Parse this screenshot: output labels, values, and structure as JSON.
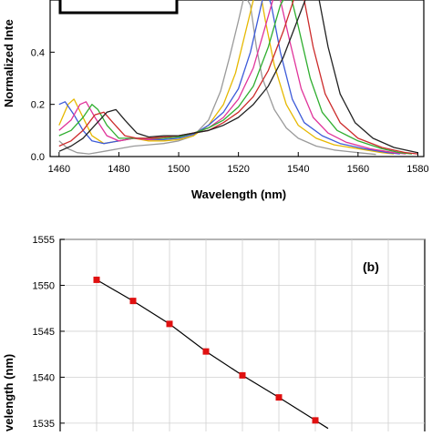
{
  "chart_data": [
    {
      "type": "line",
      "xlabel": "Wavelength (nm)",
      "ylabel": "Normalized Inte",
      "xlim": [
        1457,
        1582
      ],
      "ylim": [
        0,
        0.6
      ],
      "x_ticks": [
        "1460",
        "1480",
        "1500",
        "1520",
        "1540",
        "1560",
        "1580"
      ],
      "y_ticks": [
        "0.0",
        "0.2",
        "0.4"
      ],
      "grid": false,
      "series": [
        {
          "color": "#9a9a9a",
          "values": [
            [
              1460,
              0.06
            ],
            [
              1463,
              0.03
            ],
            [
              1466,
              0.015
            ],
            [
              1470,
              0.01
            ],
            [
              1475,
              0.02
            ],
            [
              1480,
              0.03
            ],
            [
              1485,
              0.04
            ],
            [
              1490,
              0.045
            ],
            [
              1495,
              0.05
            ],
            [
              1500,
              0.06
            ],
            [
              1505,
              0.08
            ],
            [
              1510,
              0.14
            ],
            [
              1514,
              0.25
            ],
            [
              1517,
              0.38
            ],
            [
              1520,
              0.52
            ],
            [
              1522,
              0.62
            ],
            [
              1524,
              0.58
            ],
            [
              1526,
              0.42
            ],
            [
              1528,
              0.3
            ],
            [
              1532,
              0.18
            ],
            [
              1536,
              0.11
            ],
            [
              1540,
              0.07
            ],
            [
              1546,
              0.04
            ],
            [
              1552,
              0.025
            ],
            [
              1560,
              0.015
            ],
            [
              1566,
              0.008
            ]
          ]
        },
        {
          "color": "#e6b800",
          "values": [
            [
              1460,
              0.12
            ],
            [
              1463,
              0.2
            ],
            [
              1465,
              0.22
            ],
            [
              1468,
              0.15
            ],
            [
              1471,
              0.08
            ],
            [
              1475,
              0.05
            ],
            [
              1480,
              0.06
            ],
            [
              1485,
              0.07
            ],
            [
              1490,
              0.06
            ],
            [
              1495,
              0.06
            ],
            [
              1500,
              0.065
            ],
            [
              1505,
              0.08
            ],
            [
              1510,
              0.12
            ],
            [
              1515,
              0.2
            ],
            [
              1519,
              0.32
            ],
            [
              1522,
              0.46
            ],
            [
              1525,
              0.6
            ],
            [
              1527,
              0.65
            ],
            [
              1529,
              0.52
            ],
            [
              1532,
              0.35
            ],
            [
              1536,
              0.2
            ],
            [
              1540,
              0.12
            ],
            [
              1546,
              0.07
            ],
            [
              1552,
              0.045
            ],
            [
              1560,
              0.03
            ],
            [
              1568,
              0.015
            ],
            [
              1572,
              0.01
            ]
          ]
        },
        {
          "color": "#3d5bd9",
          "values": [
            [
              1460,
              0.2
            ],
            [
              1462,
              0.21
            ],
            [
              1465,
              0.16
            ],
            [
              1468,
              0.1
            ],
            [
              1471,
              0.06
            ],
            [
              1475,
              0.05
            ],
            [
              1480,
              0.06
            ],
            [
              1485,
              0.07
            ],
            [
              1490,
              0.065
            ],
            [
              1495,
              0.065
            ],
            [
              1500,
              0.07
            ],
            [
              1505,
              0.085
            ],
            [
              1510,
              0.12
            ],
            [
              1515,
              0.17
            ],
            [
              1520,
              0.26
            ],
            [
              1524,
              0.4
            ],
            [
              1527,
              0.55
            ],
            [
              1529,
              0.65
            ],
            [
              1531,
              0.58
            ],
            [
              1534,
              0.4
            ],
            [
              1538,
              0.22
            ],
            [
              1542,
              0.13
            ],
            [
              1548,
              0.08
            ],
            [
              1554,
              0.05
            ],
            [
              1562,
              0.03
            ],
            [
              1570,
              0.015
            ],
            [
              1574,
              0.01
            ]
          ]
        },
        {
          "color": "#e0339a",
          "values": [
            [
              1460,
              0.1
            ],
            [
              1464,
              0.14
            ],
            [
              1467,
              0.2
            ],
            [
              1469,
              0.21
            ],
            [
              1472,
              0.15
            ],
            [
              1476,
              0.08
            ],
            [
              1480,
              0.06
            ],
            [
              1485,
              0.07
            ],
            [
              1490,
              0.065
            ],
            [
              1495,
              0.07
            ],
            [
              1500,
              0.075
            ],
            [
              1505,
              0.09
            ],
            [
              1510,
              0.11
            ],
            [
              1515,
              0.15
            ],
            [
              1520,
              0.22
            ],
            [
              1525,
              0.34
            ],
            [
              1529,
              0.5
            ],
            [
              1532,
              0.62
            ],
            [
              1534,
              0.6
            ],
            [
              1537,
              0.45
            ],
            [
              1541,
              0.26
            ],
            [
              1545,
              0.15
            ],
            [
              1550,
              0.09
            ],
            [
              1556,
              0.055
            ],
            [
              1564,
              0.03
            ],
            [
              1572,
              0.015
            ],
            [
              1576,
              0.01
            ]
          ]
        },
        {
          "color": "#2fae2f",
          "values": [
            [
              1460,
              0.08
            ],
            [
              1464,
              0.1
            ],
            [
              1468,
              0.15
            ],
            [
              1471,
              0.2
            ],
            [
              1473,
              0.18
            ],
            [
              1476,
              0.12
            ],
            [
              1480,
              0.07
            ],
            [
              1485,
              0.07
            ],
            [
              1490,
              0.07
            ],
            [
              1495,
              0.07
            ],
            [
              1500,
              0.075
            ],
            [
              1505,
              0.09
            ],
            [
              1510,
              0.11
            ],
            [
              1515,
              0.14
            ],
            [
              1520,
              0.19
            ],
            [
              1525,
              0.27
            ],
            [
              1530,
              0.42
            ],
            [
              1534,
              0.58
            ],
            [
              1537,
              0.64
            ],
            [
              1540,
              0.5
            ],
            [
              1544,
              0.3
            ],
            [
              1548,
              0.17
            ],
            [
              1553,
              0.1
            ],
            [
              1560,
              0.06
            ],
            [
              1568,
              0.03
            ],
            [
              1574,
              0.015
            ],
            [
              1578,
              0.01
            ]
          ]
        },
        {
          "color": "#cc2b2b",
          "values": [
            [
              1460,
              0.04
            ],
            [
              1464,
              0.06
            ],
            [
              1468,
              0.1
            ],
            [
              1472,
              0.16
            ],
            [
              1475,
              0.17
            ],
            [
              1478,
              0.13
            ],
            [
              1482,
              0.08
            ],
            [
              1486,
              0.07
            ],
            [
              1490,
              0.07
            ],
            [
              1495,
              0.075
            ],
            [
              1500,
              0.08
            ],
            [
              1505,
              0.09
            ],
            [
              1510,
              0.1
            ],
            [
              1515,
              0.13
            ],
            [
              1520,
              0.17
            ],
            [
              1525,
              0.23
            ],
            [
              1530,
              0.33
            ],
            [
              1535,
              0.48
            ],
            [
              1539,
              0.62
            ],
            [
              1542,
              0.6
            ],
            [
              1545,
              0.42
            ],
            [
              1549,
              0.24
            ],
            [
              1554,
              0.13
            ],
            [
              1560,
              0.07
            ],
            [
              1568,
              0.035
            ],
            [
              1576,
              0.015
            ],
            [
              1580,
              0.01
            ]
          ]
        },
        {
          "color": "#222222",
          "values": [
            [
              1460,
              0.02
            ],
            [
              1464,
              0.04
            ],
            [
              1468,
              0.07
            ],
            [
              1472,
              0.12
            ],
            [
              1476,
              0.17
            ],
            [
              1479,
              0.18
            ],
            [
              1482,
              0.14
            ],
            [
              1486,
              0.09
            ],
            [
              1490,
              0.075
            ],
            [
              1495,
              0.08
            ],
            [
              1500,
              0.08
            ],
            [
              1505,
              0.09
            ],
            [
              1510,
              0.1
            ],
            [
              1515,
              0.12
            ],
            [
              1520,
              0.15
            ],
            [
              1525,
              0.2
            ],
            [
              1530,
              0.27
            ],
            [
              1535,
              0.38
            ],
            [
              1540,
              0.53
            ],
            [
              1544,
              0.65
            ],
            [
              1547,
              0.6
            ],
            [
              1550,
              0.42
            ],
            [
              1554,
              0.24
            ],
            [
              1559,
              0.13
            ],
            [
              1565,
              0.07
            ],
            [
              1572,
              0.035
            ],
            [
              1580,
              0.015
            ]
          ]
        }
      ]
    },
    {
      "type": "line",
      "panel_label": "(b)",
      "ylabel": "velength (nm)",
      "ylim": [
        1533.7,
        1555
      ],
      "xlim": [
        0,
        10
      ],
      "y_ticks": [
        "1535",
        "1540",
        "1545",
        "1550",
        "1555"
      ],
      "grid": true,
      "marker_color": "#e01010",
      "line_color": "#000000",
      "points": [
        [
          1,
          1550.6
        ],
        [
          2,
          1548.3
        ],
        [
          3,
          1545.8
        ],
        [
          4,
          1542.8
        ],
        [
          5,
          1540.2
        ],
        [
          6,
          1537.8
        ],
        [
          7,
          1535.3
        ]
      ]
    }
  ]
}
